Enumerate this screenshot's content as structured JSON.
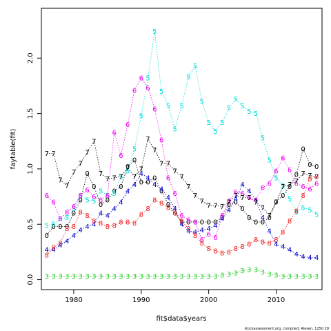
{
  "chart_data": {
    "type": "line",
    "title": "",
    "xlabel": "fit$data$years",
    "ylabel": "faytable(fit)",
    "xlim": [
      1975.2,
      2016.8
    ],
    "ylim": [
      -0.09,
      2.45
    ],
    "x_ticks": [
      1980,
      1990,
      2000,
      2010
    ],
    "y_ticks": [
      0.0,
      0.5,
      1.0,
      1.5,
      2.0
    ],
    "y_tick_labels": [
      "0.0",
      "0.5",
      "1.0",
      "1.5",
      "2.0"
    ],
    "line_style": "dotted",
    "marker_style": "series number",
    "credit": "stockassessment.org, compiled: Alesen, 1250 29",
    "x": [
      1976,
      1977,
      1978,
      1979,
      1980,
      1981,
      1982,
      1983,
      1984,
      1985,
      1986,
      1987,
      1988,
      1989,
      1990,
      1991,
      1992,
      1993,
      1994,
      1995,
      1996,
      1997,
      1998,
      1999,
      2000,
      2001,
      2002,
      2003,
      2004,
      2005,
      2006,
      2007,
      2008,
      2009,
      2010,
      2011,
      2012,
      2013,
      2014,
      2015,
      2016
    ],
    "series": [
      {
        "marker": "0",
        "color": "#000000",
        "values": [
          0.4,
          0.48,
          0.48,
          0.48,
          0.6,
          0.72,
          0.96,
          0.84,
          0.68,
          0.72,
          0.8,
          0.84,
          1.02,
          1.08,
          0.88,
          0.88,
          0.92,
          0.8,
          0.68,
          0.6,
          0.52,
          0.52,
          0.52,
          0.52,
          0.52,
          0.52,
          0.56,
          0.68,
          0.7,
          0.64,
          0.56,
          0.52,
          0.52,
          0.56,
          0.7,
          0.76,
          0.84,
          0.95,
          1.18,
          1.04,
          1.02
        ]
      },
      {
        "marker": "3",
        "color": "#22cc22",
        "values": [
          0.03,
          0.03,
          0.03,
          0.03,
          0.03,
          0.03,
          0.03,
          0.03,
          0.03,
          0.03,
          0.03,
          0.03,
          0.03,
          0.03,
          0.03,
          0.03,
          0.03,
          0.03,
          0.03,
          0.03,
          0.03,
          0.03,
          0.03,
          0.03,
          0.03,
          0.03,
          0.04,
          0.05,
          0.06,
          0.08,
          0.09,
          0.09,
          0.07,
          0.05,
          0.04,
          0.03,
          0.03,
          0.03,
          0.03,
          0.03,
          0.03
        ]
      },
      {
        "marker": "4",
        "color": "#0000cc",
        "values": [
          0.27,
          0.27,
          0.31,
          0.35,
          0.4,
          0.45,
          0.48,
          0.5,
          0.6,
          0.58,
          0.64,
          0.7,
          0.8,
          0.86,
          0.96,
          0.92,
          0.86,
          0.82,
          0.74,
          0.64,
          0.5,
          0.44,
          0.43,
          0.45,
          0.46,
          0.49,
          0.55,
          0.63,
          0.73,
          0.86,
          0.8,
          0.72,
          0.56,
          0.44,
          0.32,
          0.3,
          0.27,
          0.23,
          0.21,
          0.2,
          0.2
        ]
      },
      {
        "marker": "5",
        "color": "#00dddd",
        "values": [
          0.49,
          0.5,
          0.55,
          0.56,
          0.64,
          0.76,
          0.72,
          0.71,
          0.8,
          0.76,
          0.78,
          0.93,
          0.98,
          1.18,
          1.48,
          1.82,
          2.24,
          1.7,
          1.57,
          1.36,
          1.57,
          1.83,
          1.93,
          1.61,
          1.42,
          1.34,
          1.42,
          1.55,
          1.63,
          1.57,
          1.52,
          1.5,
          1.28,
          1.08,
          0.92,
          0.85,
          0.73,
          0.61,
          0.65,
          0.63,
          0.59
        ]
      },
      {
        "marker": "6",
        "color": "#ee00ee",
        "values": [
          0.76,
          0.7,
          0.55,
          0.61,
          0.66,
          0.76,
          0.81,
          0.75,
          0.72,
          0.76,
          1.33,
          1.12,
          1.4,
          1.71,
          1.82,
          1.73,
          1.54,
          1.26,
          0.92,
          0.78,
          0.58,
          0.54,
          0.52,
          0.36,
          0.41,
          0.38,
          0.58,
          0.71,
          0.79,
          0.78,
          0.74,
          0.72,
          0.83,
          0.87,
          0.98,
          1.1,
          0.99,
          0.87,
          0.84,
          0.82,
          0.87
        ]
      },
      {
        "marker": "7",
        "color": "#000000",
        "values": [
          1.14,
          1.14,
          0.9,
          0.85,
          0.97,
          1.05,
          1.15,
          1.25,
          0.96,
          0.91,
          0.92,
          0.93,
          1.01,
          0.93,
          1.0,
          1.27,
          1.17,
          1.05,
          1.05,
          0.98,
          0.93,
          0.84,
          0.76,
          0.71,
          0.67,
          0.67,
          0.66,
          0.7,
          0.76,
          0.74,
          0.74,
          0.7,
          0.65,
          0.58,
          0.7,
          0.84,
          0.86,
          0.89,
          0.96,
          0.94,
          0.93
        ]
      },
      {
        "marker": "8",
        "color": "#ee2222",
        "values": [
          0.22,
          0.29,
          0.33,
          0.46,
          0.48,
          0.61,
          0.58,
          0.53,
          0.51,
          0.48,
          0.49,
          0.52,
          0.52,
          0.51,
          0.59,
          0.64,
          0.72,
          0.69,
          0.65,
          0.6,
          0.53,
          0.46,
          0.4,
          0.33,
          0.28,
          0.26,
          0.24,
          0.25,
          0.28,
          0.3,
          0.32,
          0.36,
          0.34,
          0.33,
          0.36,
          0.43,
          0.53,
          0.62,
          0.76,
          0.91,
          0.93
        ]
      }
    ]
  }
}
